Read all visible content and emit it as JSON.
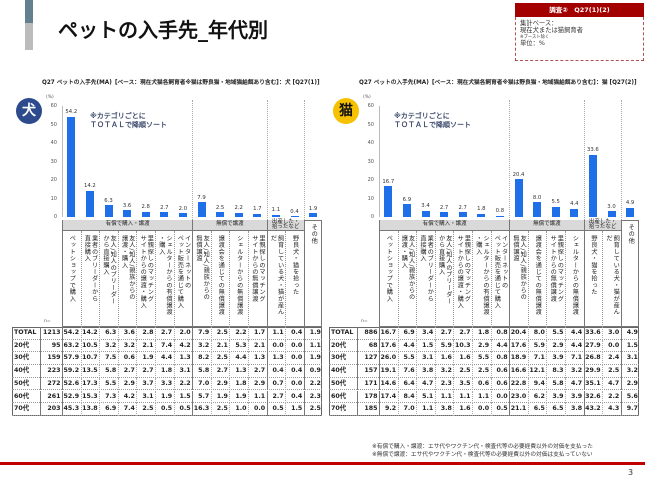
{
  "header": {
    "title": "ペットの入手先_年代別",
    "badge": "調査②　Q27(1)(2)",
    "base_label": "集計ベース：",
    "base_value": "現在犬または猫飼育者",
    "base_note": "※ブースト除く",
    "unit": "単位：%"
  },
  "colors": {
    "bar": "#1f6fe8",
    "dog_badge": "#2c4a8c",
    "cat_badge": "#f5c100",
    "accent_red": "#c00000",
    "header_gray": "#d9d9d9"
  },
  "footnotes": [
    "※有償で購入・譲渡：エサ代やワクチン代・検査代等の必要経費以外の対価を支払った",
    "※無償で譲渡：エサ代やワクチン代・検査代等の必要経費以外の対価は支払っていない"
  ],
  "page_number": "3",
  "chart_data": [
    {
      "type": "bar",
      "title": "Q27 ペットの入手先(MA)【ベース：現在犬猫各飼育者※猫は野良猫・地域猫給餌あり含む】：犬 [Q27(1)]",
      "badge": "犬",
      "note": [
        "※カテゴリごとに",
        "ＴＯＴＡＬで降順ソート"
      ],
      "ylabel": "(%)",
      "xlabel": "",
      "ylim": [
        0,
        60
      ],
      "yticks": [
        0,
        10,
        20,
        30,
        40,
        50,
        60
      ],
      "grid": false,
      "groups": [
        {
          "label": "有償で購入・譲渡",
          "span": 7
        },
        {
          "label": "無償で譲渡",
          "span": 4
        },
        {
          "label": "出産した・\n拾ったなど",
          "span": 2
        }
      ],
      "categories": [
        "ペットショップで購入",
        "業者のブリーダーから\n直接購入",
        "友人/知人のブリーダー\nから直接購入",
        "友人/知人/親族からの\n譲渡・購入",
        "里親探しのマッチング\nサイトからの譲渡・購入",
        "シェルターからの有償譲渡\n・購入",
        "インターネットの\nペット販売を通じて購入",
        "友人/知人/親族からの\n無償譲渡",
        "譲渡会を通じての無償譲渡",
        "シェルターからの無償譲渡",
        "里親探しのマッチング\nサイトからの無償譲渡",
        "飼育している犬・猫が産ん\nだ",
        "野良犬・猫を拾った",
        "その他"
      ],
      "values": [
        54.2,
        14.2,
        6.3,
        3.6,
        2.8,
        2.7,
        2.0,
        7.9,
        2.5,
        2.2,
        1.7,
        1.1,
        0.4,
        1.9
      ],
      "value_labels": [
        "54.2",
        "14.2",
        "6.3",
        "3.6",
        "2.8",
        "2.7",
        "2.0",
        "7.9",
        "2.5",
        "2.2",
        "1.7",
        "1.1",
        "0.4",
        "1.9"
      ],
      "n_label": "n=",
      "table": {
        "rows": [
          {
            "label": "TOTAL",
            "n": "1213",
            "values": [
              "54.2",
              "14.2",
              "6.3",
              "3.6",
              "2.8",
              "2.7",
              "2.0",
              "7.9",
              "2.5",
              "2.2",
              "1.7",
              "1.1",
              "0.4",
              "1.9"
            ]
          },
          {
            "label": "20代",
            "n": "95",
            "values": [
              "63.2",
              "10.5",
              "3.2",
              "3.2",
              "2.1",
              "7.4",
              "4.2",
              "3.2",
              "2.1",
              "5.3",
              "2.1",
              "0.0",
              "0.0",
              "1.1"
            ]
          },
          {
            "label": "30代",
            "n": "159",
            "values": [
              "57.9",
              "10.7",
              "7.5",
              "0.6",
              "1.9",
              "4.4",
              "1.3",
              "8.2",
              "2.5",
              "4.4",
              "1.3",
              "1.3",
              "0.0",
              "1.9"
            ]
          },
          {
            "label": "40代",
            "n": "223",
            "values": [
              "59.2",
              "13.5",
              "5.8",
              "2.7",
              "2.7",
              "1.8",
              "3.1",
              "5.8",
              "2.7",
              "1.3",
              "2.7",
              "0.4",
              "0.4",
              "0.9"
            ]
          },
          {
            "label": "50代",
            "n": "272",
            "values": [
              "52.6",
              "17.3",
              "5.5",
              "2.9",
              "3.7",
              "3.3",
              "2.2",
              "7.0",
              "2.9",
              "1.8",
              "2.9",
              "0.7",
              "0.0",
              "2.2"
            ]
          },
          {
            "label": "60代",
            "n": "261",
            "values": [
              "52.9",
              "15.3",
              "7.3",
              "4.2",
              "3.1",
              "1.9",
              "1.5",
              "5.7",
              "1.9",
              "1.9",
              "1.1",
              "2.7",
              "0.4",
              "2.3"
            ]
          },
          {
            "label": "70代",
            "n": "203",
            "values": [
              "45.3",
              "13.8",
              "6.9",
              "7.4",
              "2.5",
              "0.5",
              "0.5",
              "16.3",
              "2.5",
              "1.0",
              "0.0",
              "0.5",
              "1.5",
              "2.5"
            ]
          }
        ]
      }
    },
    {
      "type": "bar",
      "title": "Q27 ペットの入手先(MA)【ベース：現在犬猫各飼育者※猫は野良猫・地域猫給餌あり含む】：猫 [Q27(2)]",
      "badge": "猫",
      "note": [
        "※カテゴリごとに",
        "ＴＯＴＡＬで降順ソート"
      ],
      "ylabel": "(%)",
      "xlabel": "",
      "ylim": [
        0,
        60
      ],
      "yticks": [
        0,
        10,
        20,
        30,
        40,
        50,
        60
      ],
      "grid": false,
      "groups": [
        {
          "label": "有償で購入・譲渡",
          "span": 7
        },
        {
          "label": "無償で譲渡",
          "span": 4
        },
        {
          "label": "出産した・\n拾ったなど",
          "span": 2
        }
      ],
      "categories": [
        "ペットショップで購入",
        "友人/知人/親族からの\n譲渡・購入",
        "業者のブリーダーから\n直接購入",
        "友人/知人のブリーダー\nから直接購入",
        "里親探しのマッチング\nサイトからの譲渡・購入",
        "シェルターからの有償譲渡\n・購入",
        "インターネットの\nペット販売を通じて購入",
        "友人/知人/親族からの\n無償譲渡",
        "譲渡会を通じての無償譲渡",
        "里親探しのマッチング\nサイトからの無償譲渡",
        "シェルターからの無償譲渡",
        "野良犬・猫を拾った",
        "飼育している犬・猫が産ん\nだ",
        "その他"
      ],
      "values": [
        16.7,
        6.9,
        3.4,
        2.7,
        2.7,
        1.8,
        0.8,
        20.4,
        8.0,
        5.5,
        4.4,
        33.6,
        3.0,
        4.9
      ],
      "value_labels": [
        "16.7",
        "6.9",
        "3.4",
        "2.7",
        "2.7",
        "1.8",
        "0.8",
        "20.4",
        "8.0",
        "5.5",
        "4.4",
        "33.6",
        "3.0",
        "4.9"
      ],
      "n_label": "n=",
      "table": {
        "rows": [
          {
            "label": "TOTAL",
            "n": "886",
            "values": [
              "16.7",
              "6.9",
              "3.4",
              "2.7",
              "2.7",
              "1.8",
              "0.8",
              "20.4",
              "8.0",
              "5.5",
              "4.4",
              "33.6",
              "3.0",
              "4.9"
            ]
          },
          {
            "label": "20代",
            "n": "68",
            "values": [
              "17.6",
              "4.4",
              "1.5",
              "5.9",
              "10.3",
              "2.9",
              "4.4",
              "17.6",
              "5.9",
              "2.9",
              "4.4",
              "27.9",
              "0.0",
              "1.5"
            ]
          },
          {
            "label": "30代",
            "n": "127",
            "values": [
              "26.0",
              "5.5",
              "3.1",
              "1.6",
              "1.6",
              "5.5",
              "0.8",
              "18.9",
              "7.1",
              "3.9",
              "7.1",
              "26.8",
              "2.4",
              "3.1"
            ]
          },
          {
            "label": "40代",
            "n": "157",
            "values": [
              "19.1",
              "7.6",
              "3.8",
              "3.2",
              "2.5",
              "2.5",
              "0.6",
              "16.6",
              "12.1",
              "8.3",
              "3.2",
              "29.9",
              "2.5",
              "3.2"
            ]
          },
          {
            "label": "50代",
            "n": "171",
            "values": [
              "14.6",
              "6.4",
              "4.7",
              "2.3",
              "3.5",
              "0.6",
              "0.6",
              "22.8",
              "9.4",
              "5.8",
              "4.7",
              "35.1",
              "4.7",
              "2.9"
            ]
          },
          {
            "label": "60代",
            "n": "178",
            "values": [
              "17.4",
              "8.4",
              "5.1",
              "1.1",
              "1.1",
              "1.1",
              "0.0",
              "23.0",
              "6.2",
              "3.9",
              "3.9",
              "32.6",
              "2.2",
              "5.6"
            ]
          },
          {
            "label": "70代",
            "n": "185",
            "values": [
              "9.2",
              "7.0",
              "1.1",
              "3.8",
              "1.6",
              "0.0",
              "0.5",
              "21.1",
              "6.5",
              "6.5",
              "3.8",
              "43.2",
              "4.3",
              "9.7"
            ]
          }
        ]
      }
    }
  ]
}
